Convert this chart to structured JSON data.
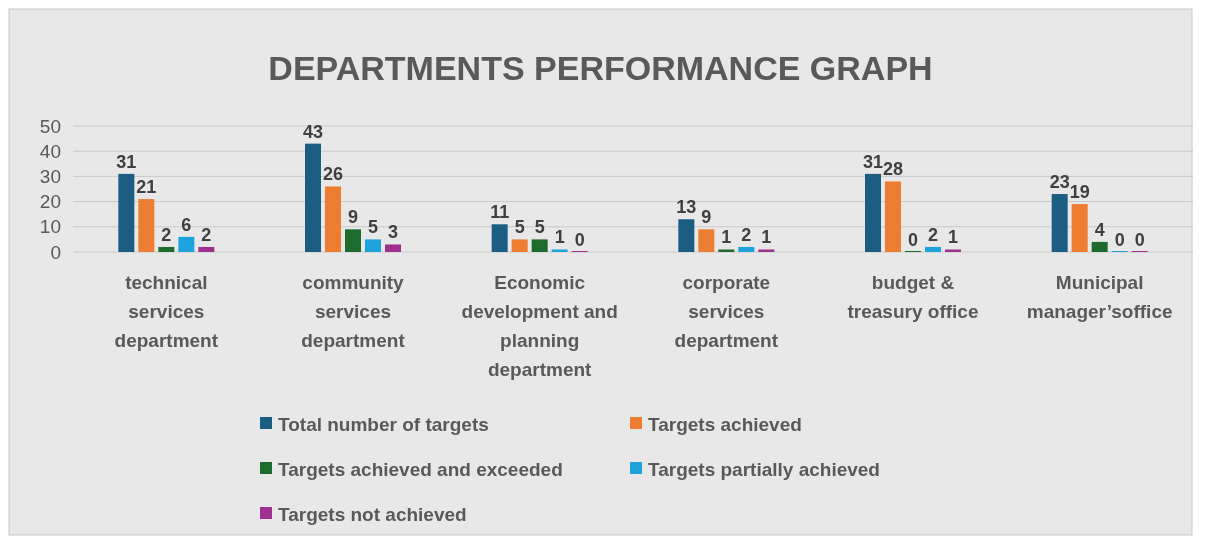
{
  "chart_data": {
    "type": "bar",
    "title": "DEPARTMENTS PERFORMANCE GRAPH",
    "categories": [
      "technical services department",
      "community services department",
      "Economic development and planning department",
      "corporate services department",
      "budget  & treasury office",
      "Municipal manager’soffice"
    ],
    "series": [
      {
        "name": "Total number of targets",
        "color": "#1b5e82",
        "values": [
          31,
          43,
          11,
          13,
          31,
          23
        ]
      },
      {
        "name": "Targets achieved",
        "color": "#ed7d31",
        "values": [
          21,
          26,
          5,
          9,
          28,
          19
        ]
      },
      {
        "name": "Targets achieved and exceeded",
        "color": "#1e6b2e",
        "values": [
          2,
          9,
          5,
          1,
          0,
          4
        ]
      },
      {
        "name": "Targets partially achieved",
        "color": "#1fa3dd",
        "values": [
          6,
          5,
          1,
          2,
          2,
          0
        ]
      },
      {
        "name": "Targets not achieved",
        "color": "#a0308f",
        "values": [
          2,
          3,
          0,
          1,
          1,
          0
        ]
      }
    ],
    "ylim": [
      0,
      50
    ],
    "yticks": [
      0,
      10,
      20,
      30,
      40,
      50
    ],
    "grid": "y",
    "data_labels": true,
    "legend": "bottom"
  }
}
